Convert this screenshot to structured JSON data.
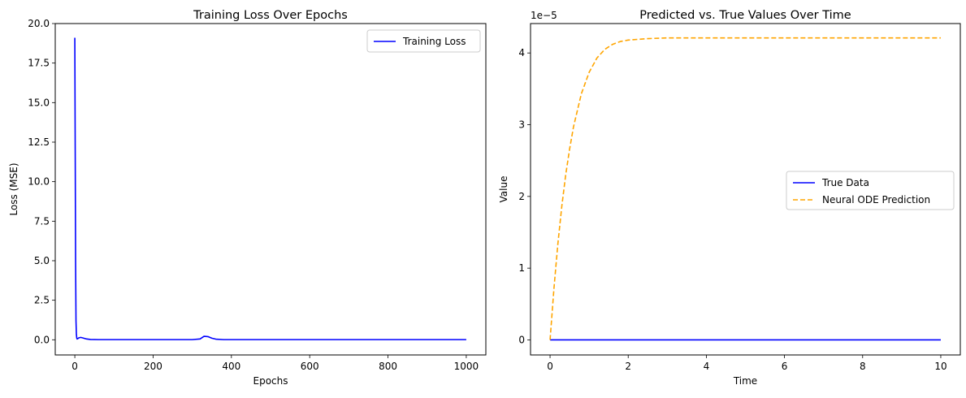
{
  "chart_data": [
    {
      "type": "line",
      "title": "Training Loss Over Epochs",
      "xlabel": "Epochs",
      "ylabel": "Loss (MSE)",
      "xlim": [
        -50,
        1050
      ],
      "ylim": [
        -0.96,
        20.0
      ],
      "xticks": [
        0,
        200,
        400,
        600,
        800,
        1000
      ],
      "xtick_labels": [
        "0",
        "200",
        "400",
        "600",
        "800",
        "1000"
      ],
      "yticks": [
        0,
        2.5,
        5,
        7.5,
        10,
        12.5,
        15,
        17.5,
        20
      ],
      "ytick_labels": [
        "0.0",
        "2.5",
        "5.0",
        "7.5",
        "10.0",
        "12.5",
        "15.0",
        "17.5",
        "20.0"
      ],
      "grid": false,
      "legend": "top-right",
      "series": [
        {
          "name": "Training Loss",
          "color": "#0000ff",
          "style": "solid",
          "x": [
            0,
            1,
            2,
            3,
            4,
            5,
            6,
            8,
            10,
            15,
            20,
            30,
            40,
            60,
            100,
            200,
            300,
            320,
            330,
            340,
            350,
            360,
            380,
            400,
            600,
            800,
            1000
          ],
          "y": [
            19.1,
            12.0,
            5.0,
            1.2,
            0.35,
            0.1,
            0.05,
            0.08,
            0.12,
            0.15,
            0.12,
            0.05,
            0.02,
            0.01,
            0.01,
            0.01,
            0.01,
            0.05,
            0.22,
            0.2,
            0.1,
            0.04,
            0.01,
            0.01,
            0.01,
            0.01,
            0.01
          ]
        }
      ]
    },
    {
      "type": "line",
      "title": "Predicted vs. True Values Over Time",
      "xlabel": "Time",
      "ylabel": "Value",
      "scale_note": "1e−5",
      "xlim": [
        -0.5,
        10.5
      ],
      "ylim": [
        -0.21,
        4.41
      ],
      "xticks": [
        0,
        2,
        4,
        6,
        8,
        10
      ],
      "xtick_labels": [
        "0",
        "2",
        "4",
        "6",
        "8",
        "10"
      ],
      "yticks": [
        0,
        1,
        2,
        3,
        4
      ],
      "ytick_labels": [
        "0",
        "1",
        "2",
        "3",
        "4"
      ],
      "grid": false,
      "legend": "center-right",
      "series": [
        {
          "name": "True Data",
          "color": "#0000ff",
          "style": "solid",
          "x": [
            0,
            10
          ],
          "y": [
            0,
            0
          ]
        },
        {
          "name": "Neural ODE Prediction",
          "color": "#ffa500",
          "style": "dashed",
          "x": [
            0,
            0.1,
            0.2,
            0.3,
            0.4,
            0.5,
            0.6,
            0.8,
            1.0,
            1.2,
            1.4,
            1.6,
            1.8,
            2.0,
            2.5,
            3.0,
            3.5,
            4.0,
            5.0,
            6.0,
            7.0,
            8.0,
            9.0,
            10.0
          ],
          "y": [
            0,
            0.72,
            1.34,
            1.86,
            2.3,
            2.66,
            2.97,
            3.43,
            3.73,
            3.93,
            4.05,
            4.12,
            4.16,
            4.18,
            4.2,
            4.21,
            4.21,
            4.21,
            4.21,
            4.21,
            4.21,
            4.21,
            4.21,
            4.21
          ]
        }
      ]
    }
  ]
}
